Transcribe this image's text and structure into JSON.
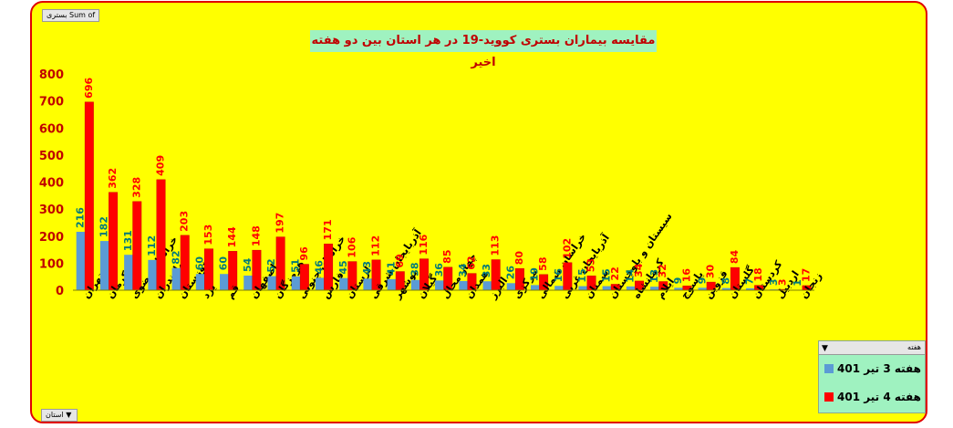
{
  "pivot": {
    "values_field": "Sum of بستری",
    "axis_field": "استان",
    "legend_field": "هفته"
  },
  "icons": {
    "filter": "filter-dropdown-icon"
  },
  "colors": {
    "series1": "#5b9bd5",
    "series2": "#ff0000",
    "label1": "#007a7a",
    "label2": "#ff0000"
  },
  "chart_data": {
    "type": "bar",
    "title": "مقایسه بیماران بستری کووید-19 در هر استان بین دو هفته اخیر",
    "xlabel": "",
    "ylabel": "",
    "ylim": [
      0,
      800
    ],
    "yticks": [
      0,
      100,
      200,
      300,
      400,
      500,
      600,
      700,
      800
    ],
    "grid": false,
    "legend_position": "bottom-right",
    "categories": [
      "تهران",
      "کرمان",
      "خراسان رضوی",
      "مازندران",
      "خوزستان",
      "یزد",
      "قم",
      "اصفهان",
      "هرمزگان",
      "خراسان جنوبی",
      "فارس",
      "لرستان",
      "آذربایجان شرقی",
      "بوشهر",
      "گیلان",
      "چهار محال",
      "همدان",
      "البرز",
      "مرکزی",
      "خراسان شمالی",
      "آذربایجان غربی",
      "سمنان",
      "سیستان و بلوچستان",
      "کرمانشاه",
      "ایلام",
      "یاسوج",
      "قزوین",
      "گلستان",
      "کردستان",
      "اردبیل",
      "زنجان"
    ],
    "series": [
      {
        "name": "هفته 3 تیر 401",
        "values": [
          216,
          182,
          131,
          112,
          82,
          60,
          60,
          54,
          52,
          51,
          46,
          45,
          43,
          41,
          38,
          36,
          34,
          33,
          26,
          19,
          16,
          15,
          15,
          14,
          13,
          9,
          9,
          8,
          7,
          3,
          1
        ]
      },
      {
        "name": "هفته 4 تیر 401",
        "values": [
          696,
          362,
          328,
          409,
          203,
          153,
          144,
          148,
          197,
          96,
          171,
          106,
          112,
          69,
          116,
          85,
          62,
          113,
          80,
          58,
          102,
          53,
          22,
          34,
          32,
          16,
          30,
          84,
          18,
          3,
          17
        ]
      }
    ]
  }
}
